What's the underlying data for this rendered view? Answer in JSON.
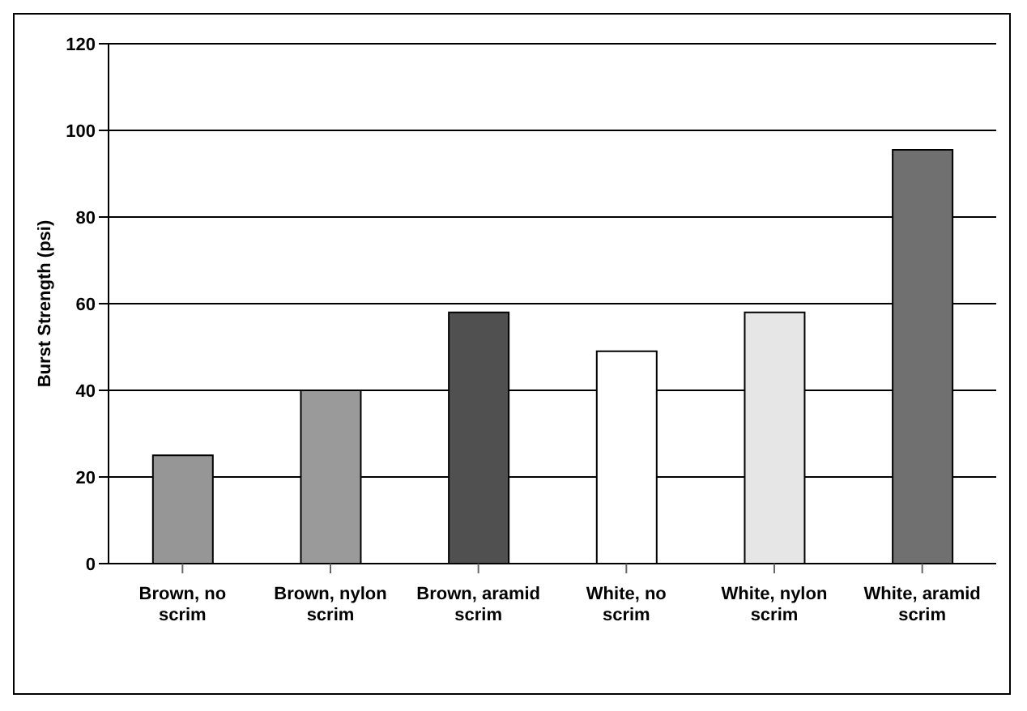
{
  "chart_data": {
    "type": "bar",
    "ylabel": "Burst Strength (psi)",
    "categories": [
      "Brown, no scrim",
      "Brown, nylon scrim",
      "Brown, aramid scrim",
      "White, no scrim",
      "White, nylon scrim",
      "White, aramid scrim"
    ],
    "values": [
      25,
      40,
      58,
      49,
      58,
      95.5
    ],
    "colors": [
      "#969696",
      "#9a9a9a",
      "#505050",
      "#ffffff",
      "#e6e6e6",
      "#707070"
    ],
    "ylim": [
      0,
      120
    ],
    "yticks": [
      0,
      20,
      40,
      60,
      80,
      100,
      120
    ],
    "grid": "y"
  }
}
